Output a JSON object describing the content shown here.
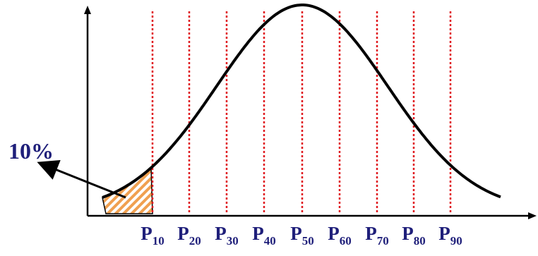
{
  "callout": {
    "text": "10%"
  },
  "percentiles": [
    {
      "letter": "P",
      "sub": "10"
    },
    {
      "letter": "P",
      "sub": "20"
    },
    {
      "letter": "P",
      "sub": "30"
    },
    {
      "letter": "P",
      "sub": "40"
    },
    {
      "letter": "P",
      "sub": "50"
    },
    {
      "letter": "P",
      "sub": "60"
    },
    {
      "letter": "P",
      "sub": "70"
    },
    {
      "letter": "P",
      "sub": "80"
    },
    {
      "letter": "P",
      "sub": "90"
    }
  ],
  "colors": {
    "curve": "#000000",
    "percentile_line": "#e0191f",
    "shaded_fill": "#f0a050",
    "label_text": "#1f1f7a"
  }
}
